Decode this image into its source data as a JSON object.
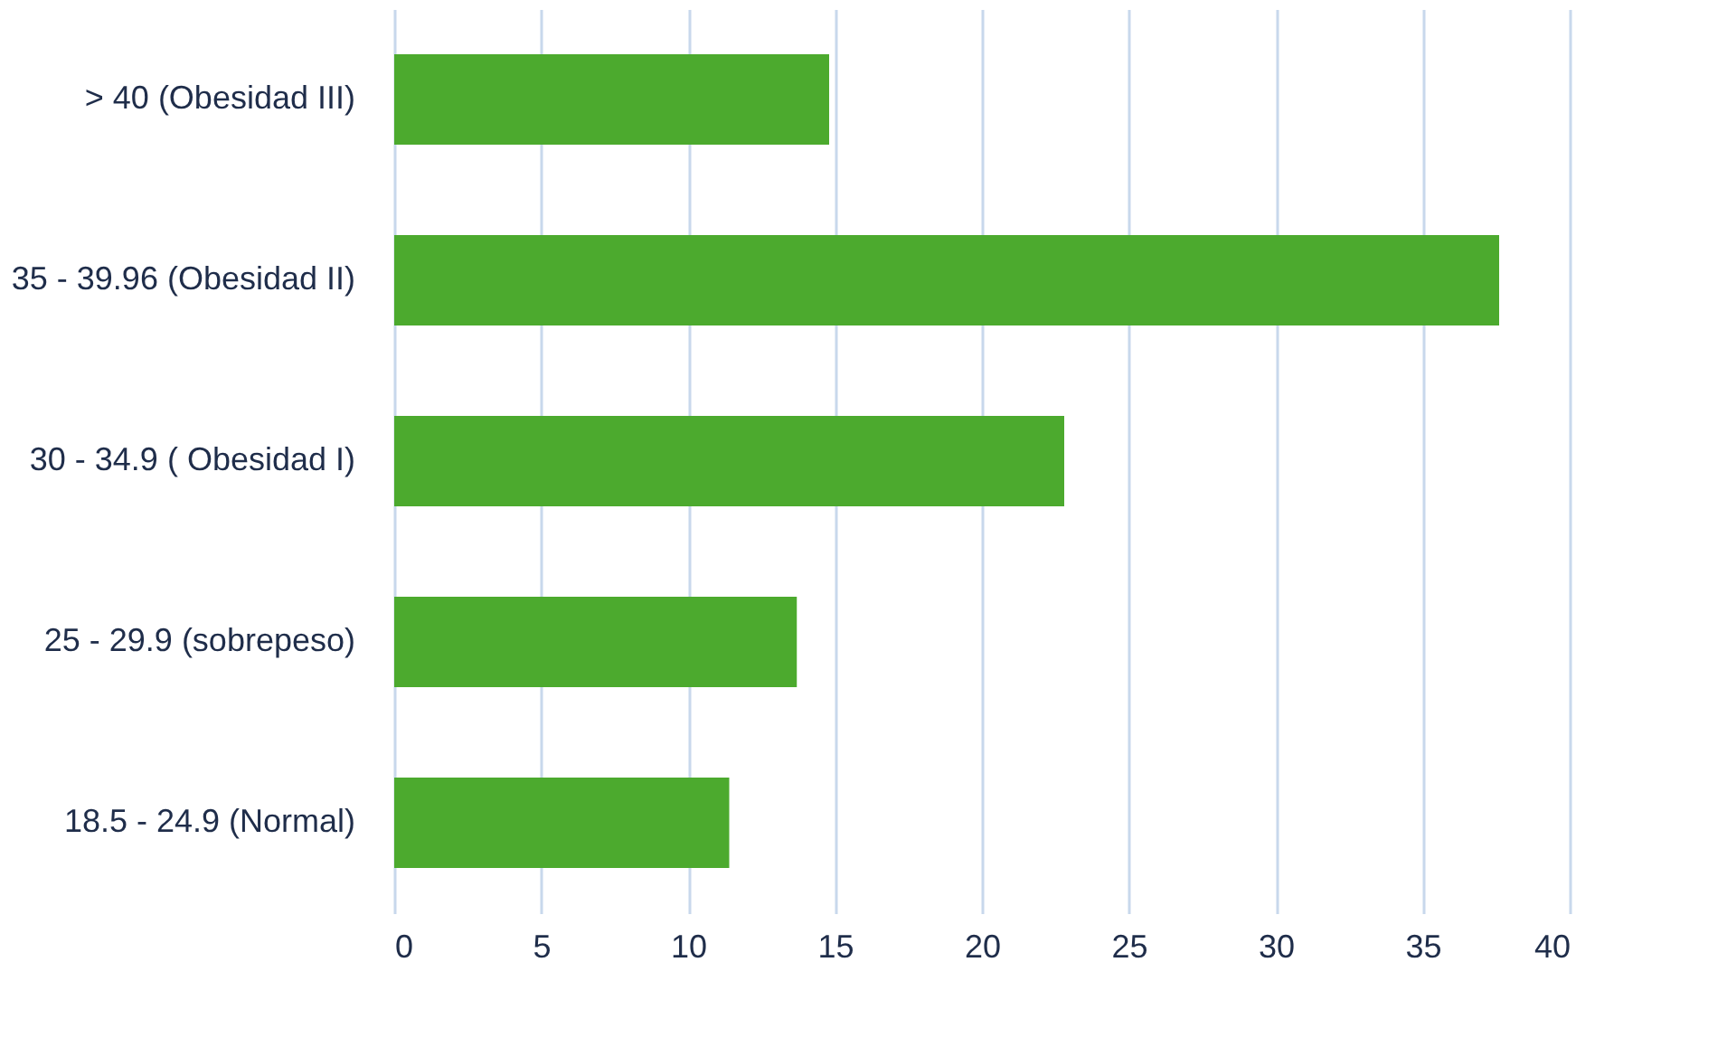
{
  "chart_data": {
    "type": "bar",
    "orientation": "horizontal",
    "categories": [
      "> 40 (Obesidad III)",
      "35 - 39.96 (Obesidad II)",
      "30 - 34.9 ( Obesidad I)",
      "25 - 29.9 (sobrepeso)",
      "18.5 - 24.9 (Normal)"
    ],
    "values": [
      14.8,
      37.6,
      22.8,
      13.7,
      11.4
    ],
    "color": "#4caa2e",
    "xlim": [
      0,
      40
    ],
    "xticks": [
      0,
      5,
      10,
      15,
      20,
      25,
      30,
      35,
      40
    ],
    "grid": "x"
  }
}
